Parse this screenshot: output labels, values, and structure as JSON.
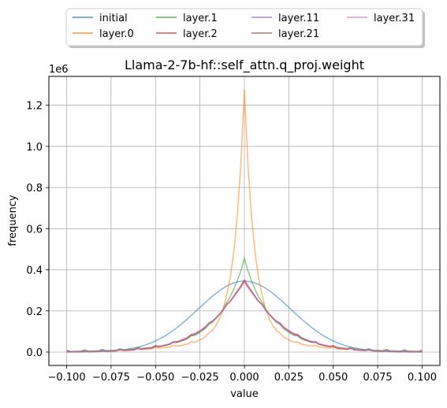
{
  "chart_data": {
    "type": "line",
    "title": "Llama-2-7b-hf::self_attn.q_proj.weight",
    "xlabel": "value",
    "ylabel": "frequency",
    "y_offset_label": "1e6",
    "xlim": [
      -0.11,
      0.11
    ],
    "ylim": [
      -0.065,
      1.34
    ],
    "y_scale_factor": 1000000,
    "x_ticks": [
      -0.1,
      -0.075,
      -0.05,
      -0.025,
      0.0,
      0.025,
      0.05,
      0.075,
      0.1
    ],
    "x_tick_labels": [
      "−0.100",
      "−0.075",
      "−0.050",
      "−0.025",
      "0.000",
      "0.025",
      "0.050",
      "0.075",
      "0.100"
    ],
    "y_ticks": [
      0.0,
      0.2,
      0.4,
      0.6,
      0.8,
      1.0,
      1.2
    ],
    "y_tick_labels": [
      "0.0",
      "0.2",
      "0.4",
      "0.6",
      "0.8",
      "1.0",
      "1.2"
    ],
    "grid": true,
    "legend": {
      "placement": "top-center-outside",
      "columns": 4
    },
    "series": [
      {
        "name": "initial",
        "color": "#1f77b4",
        "shape": "gaussian",
        "peak": 0.345,
        "width": 0.026,
        "floor": 0.0
      },
      {
        "name": "layer.0",
        "color": "#ff7f0e",
        "shape": "laplace",
        "peak": 1.27,
        "width": 0.0055,
        "floor": 0.0,
        "tail_amp": 0.1,
        "tail_width": 0.025
      },
      {
        "name": "layer.1",
        "color": "#2ca02c",
        "shape": "laplace",
        "peak": 0.45,
        "width": 0.0135,
        "floor": 0.0,
        "tail_amp": 0.2,
        "tail_width": 0.03
      },
      {
        "name": "layer.2",
        "color": "#d62728",
        "shape": "laplace",
        "peak": 0.345,
        "width": 0.021,
        "floor": 0.0,
        "tail_amp": 0.0,
        "tail_width": 0.03
      },
      {
        "name": "layer.11",
        "color": "#9467bd",
        "shape": "laplace",
        "peak": 0.34,
        "width": 0.0215,
        "floor": 0.0,
        "tail_amp": 0.0,
        "tail_width": 0.03
      },
      {
        "name": "layer.21",
        "color": "#8c564b",
        "shape": "laplace",
        "peak": 0.338,
        "width": 0.0215,
        "floor": 0.0,
        "tail_amp": 0.0,
        "tail_width": 0.03
      },
      {
        "name": "layer.31",
        "color": "#e377c2",
        "shape": "laplace",
        "peak": 0.335,
        "width": 0.022,
        "floor": 0.0,
        "tail_amp": 0.0,
        "tail_width": 0.03
      }
    ],
    "x_range": [
      -0.1,
      0.1
    ],
    "bins": 100
  }
}
